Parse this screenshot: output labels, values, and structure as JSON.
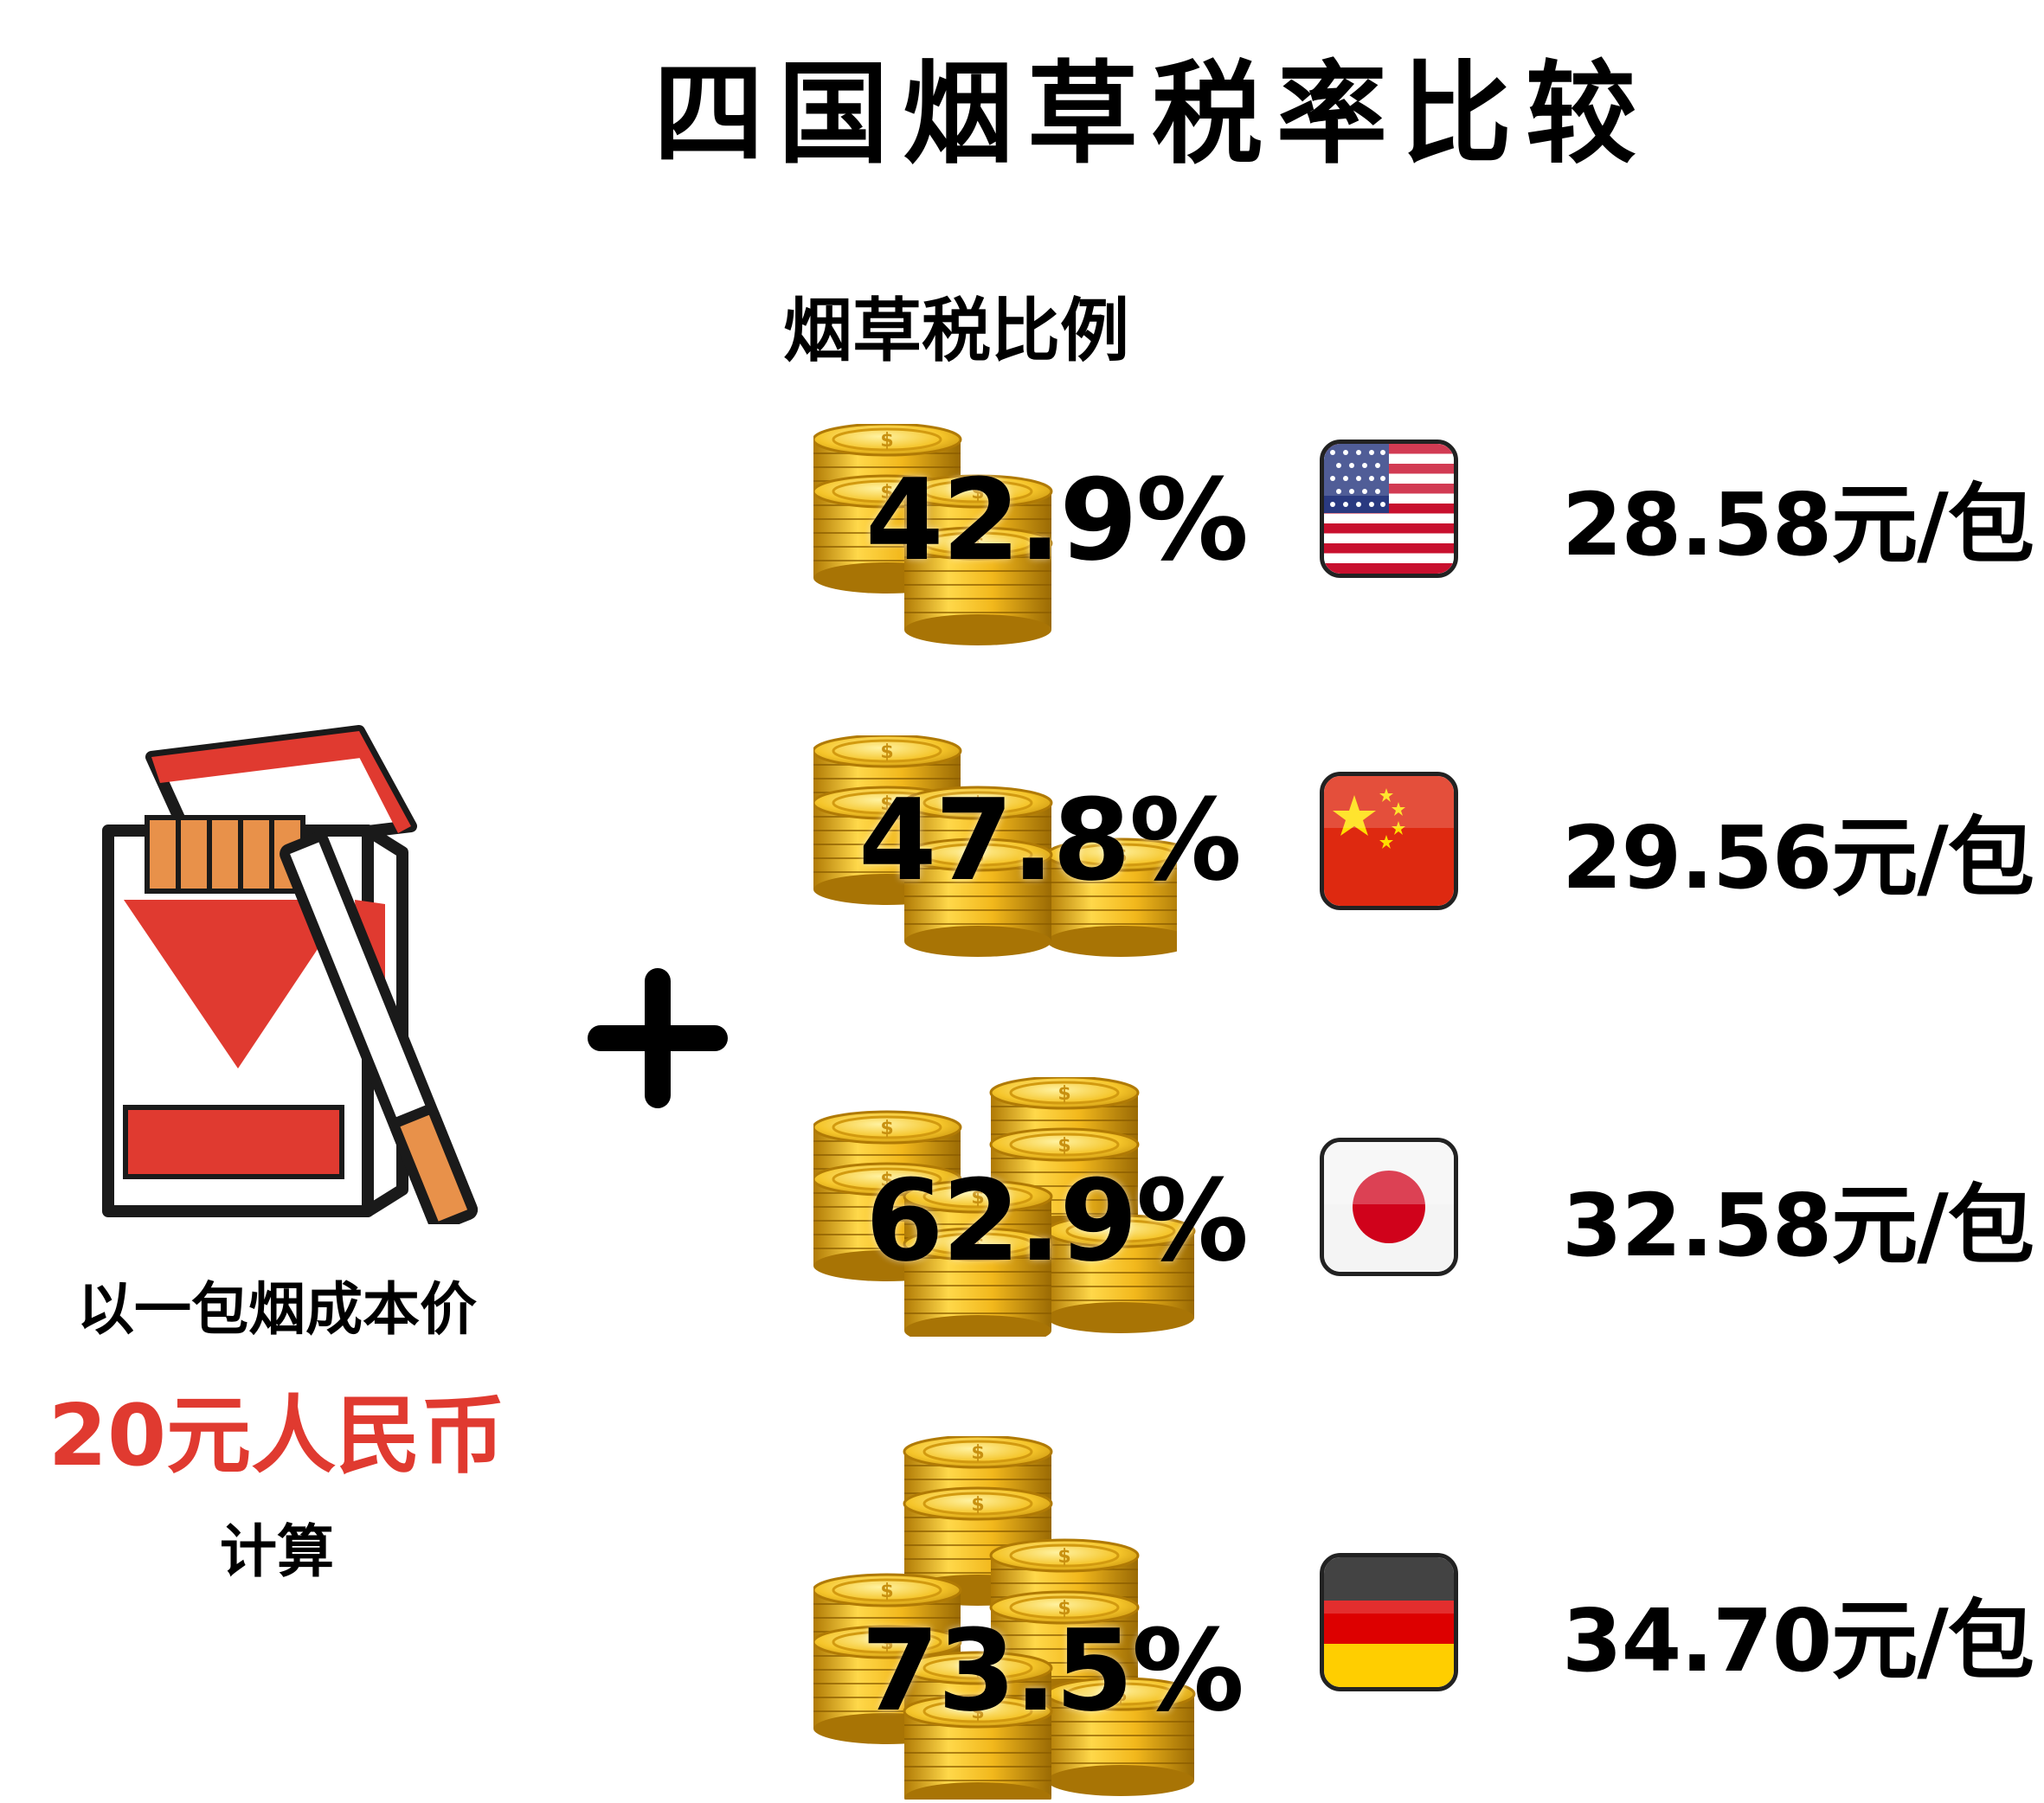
{
  "title": "四国烟草税率比较",
  "subtitle": "烟草税比例",
  "base_note": {
    "line1": "以一包烟成本价",
    "line2": "20元人民币",
    "line3": "计算"
  },
  "colors": {
    "accent_red": "#e03a30",
    "coin_gold": "#f2b81c",
    "text": "#000000"
  },
  "rows": [
    {
      "country_flag": "usa-flag-icon",
      "tax_rate": "42.9%",
      "price": "28.58元/包"
    },
    {
      "country_flag": "china-flag-icon",
      "tax_rate": "47.8%",
      "price": "29.56元/包"
    },
    {
      "country_flag": "japan-flag-icon",
      "tax_rate": "62.9%",
      "price": "32.58元/包"
    },
    {
      "country_flag": "germany-flag-icon",
      "tax_rate": "73.5%",
      "price": "34.70元/包"
    }
  ],
  "icons": {
    "pack": "cigarette-pack-icon",
    "plus": "plus-icon",
    "coins": "coin-stack-icon"
  }
}
